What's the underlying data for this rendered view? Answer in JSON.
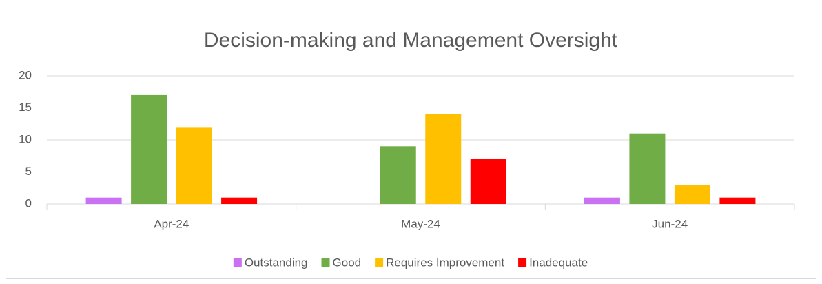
{
  "chart_data": {
    "type": "bar",
    "title": "Decision-making and Management Oversight",
    "categories": [
      "Apr-24",
      "May-24",
      "Jun-24"
    ],
    "series": [
      {
        "name": "Outstanding",
        "color": "#c971f2",
        "values": [
          1,
          0,
          1
        ]
      },
      {
        "name": "Good",
        "color": "#70ad47",
        "values": [
          17,
          9,
          11
        ]
      },
      {
        "name": "Requires Improvement",
        "color": "#ffc000",
        "values": [
          12,
          14,
          3
        ]
      },
      {
        "name": "Inadequate",
        "color": "#ff0000",
        "values": [
          1,
          7,
          1
        ]
      }
    ],
    "ylim": [
      0,
      20
    ],
    "yticks": [
      0,
      5,
      10,
      15,
      20
    ],
    "grid": true,
    "legend": "bottom"
  }
}
